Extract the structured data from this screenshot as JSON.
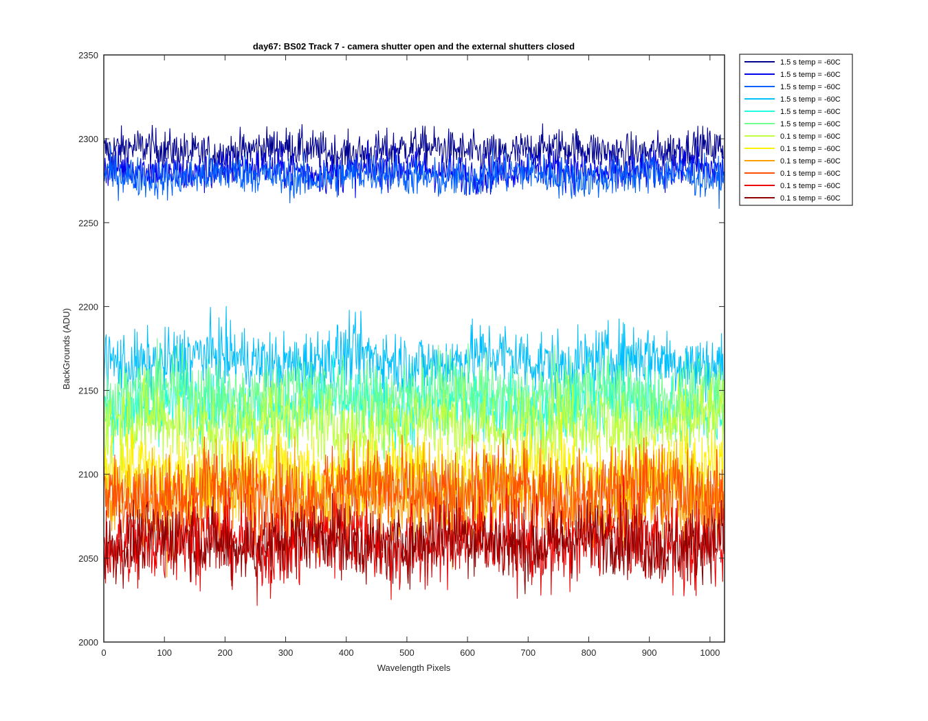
{
  "chart_data": {
    "type": "line",
    "title": "day67: BS02  Track 7 - camera shutter open and the external shutters closed",
    "xlabel": "Wavelength Pixels",
    "ylabel": "BackGrounds (ADU)",
    "xlim": [
      0,
      1024
    ],
    "ylim": [
      2000,
      2350
    ],
    "xticks": [
      0,
      100,
      200,
      300,
      400,
      500,
      600,
      700,
      800,
      900,
      1000
    ],
    "yticks": [
      2000,
      2050,
      2100,
      2150,
      2200,
      2250,
      2300,
      2350
    ],
    "grid": false,
    "legend_position": "outside-top-right",
    "n_points": 1024,
    "series": [
      {
        "name": "1.5 s temp = -60C",
        "color": "#00008F",
        "mean": 2293,
        "noise": 6
      },
      {
        "name": "1.5 s temp = -60C",
        "color": "#0000EF",
        "mean": 2281,
        "noise": 6
      },
      {
        "name": "1.5 s temp = -60C",
        "color": "#005FFF",
        "mean": 2278,
        "noise": 6
      },
      {
        "name": "1.5 s temp = -60C",
        "color": "#00BFFF",
        "mean": 2168,
        "noise": 10
      },
      {
        "name": "1.5 s temp = -60C",
        "color": "#1FFFDF",
        "mean": 2140,
        "noise": 11
      },
      {
        "name": "1.5 s temp = -60C",
        "color": "#6FFF8F",
        "mean": 2148,
        "noise": 11
      },
      {
        "name": "0.1 s temp = -60C",
        "color": "#BFFF3F",
        "mean": 2130,
        "noise": 12
      },
      {
        "name": "0.1 s temp = -60C",
        "color": "#FFEF00",
        "mean": 2100,
        "noise": 13
      },
      {
        "name": "0.1 s temp = -60C",
        "color": "#FF9F00",
        "mean": 2085,
        "noise": 14
      },
      {
        "name": "0.1 s temp = -60C",
        "color": "#FF4F00",
        "mean": 2090,
        "noise": 13
      },
      {
        "name": "0.1 s temp = -60C",
        "color": "#EF0000",
        "mean": 2060,
        "noise": 13
      },
      {
        "name": "0.1 s temp = -60C",
        "color": "#8F0000",
        "mean": 2060,
        "noise": 11
      }
    ]
  }
}
